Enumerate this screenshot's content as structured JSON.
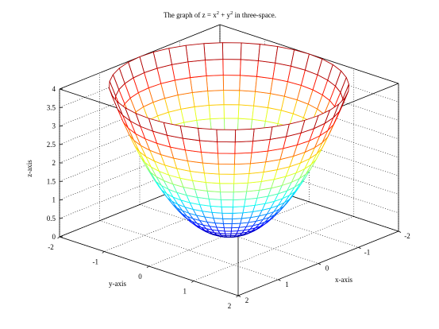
{
  "chart_data": {
    "type": "mesh3d",
    "title": [
      "The graph of z = x",
      "2",
      " + y",
      "2",
      " in three-space."
    ],
    "x_label": "x-axis",
    "y_label": "y-axis",
    "z_label": "z-axis",
    "xlim": [
      -2,
      2
    ],
    "ylim": [
      -2,
      2
    ],
    "zlim": [
      0,
      4
    ],
    "xticks": [
      -2,
      -1,
      0,
      1,
      2
    ],
    "yticks": [
      -2,
      -1,
      0,
      1,
      2
    ],
    "zticks": [
      0,
      0.5,
      1,
      1.5,
      2,
      2.5,
      3,
      3.5,
      4
    ],
    "grid": true,
    "colormap": "jet",
    "r": [
      0,
      0.1,
      0.2,
      0.3,
      0.4,
      0.5,
      0.6,
      0.7,
      0.8,
      0.9,
      1,
      1.1,
      1.2,
      1.3,
      1.4,
      1.5,
      1.6,
      1.7,
      1.8,
      1.9,
      2
    ],
    "z": [
      0,
      0.01,
      0.04,
      0.09,
      0.16,
      0.25,
      0.36,
      0.49,
      0.64,
      0.81,
      1,
      1.21,
      1.44,
      1.69,
      1.96,
      2.25,
      2.56,
      2.89,
      3.24,
      3.61,
      4
    ],
    "angles": [
      0,
      9,
      18,
      27,
      36,
      45,
      54,
      63,
      72,
      81,
      90,
      99,
      108,
      117,
      126,
      135,
      144,
      153,
      162,
      171,
      180,
      189,
      198,
      207,
      216,
      225,
      234,
      243,
      252,
      261,
      270,
      279,
      288,
      297,
      306,
      315,
      324,
      333,
      342,
      351
    ]
  }
}
